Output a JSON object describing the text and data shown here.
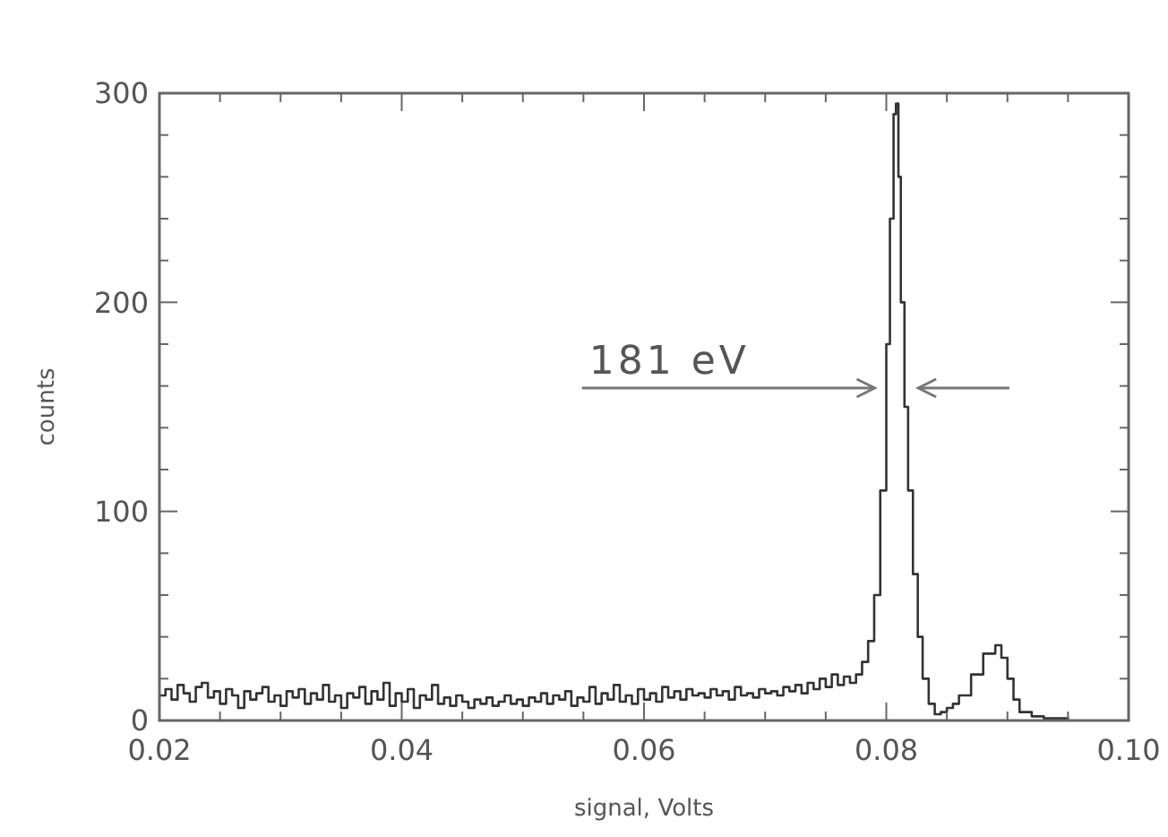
{
  "chart_data": {
    "type": "step",
    "xlabel": "signal, Volts",
    "ylabel": "counts",
    "xlim": [
      0.02,
      0.1
    ],
    "ylim": [
      0,
      300
    ],
    "xticks": [
      {
        "value": 0.02,
        "label": "0.02"
      },
      {
        "value": 0.025,
        "label": null
      },
      {
        "value": 0.03,
        "label": null
      },
      {
        "value": 0.035,
        "label": null
      },
      {
        "value": 0.04,
        "label": "0.04"
      },
      {
        "value": 0.045,
        "label": null
      },
      {
        "value": 0.05,
        "label": null
      },
      {
        "value": 0.055,
        "label": null
      },
      {
        "value": 0.06,
        "label": "0.06"
      },
      {
        "value": 0.065,
        "label": null
      },
      {
        "value": 0.07,
        "label": null
      },
      {
        "value": 0.075,
        "label": null
      },
      {
        "value": 0.08,
        "label": "0.08"
      },
      {
        "value": 0.085,
        "label": null
      },
      {
        "value": 0.09,
        "label": null
      },
      {
        "value": 0.095,
        "label": null
      },
      {
        "value": 0.1,
        "label": "0.10"
      }
    ],
    "yticks": [
      0,
      {
        "value": 20,
        "label": null
      },
      {
        "value": 40,
        "label": null
      },
      {
        "value": 60,
        "label": null
      },
      {
        "value": 80,
        "label": null
      },
      100,
      {
        "value": 120,
        "label": null
      },
      {
        "value": 140,
        "label": null
      },
      {
        "value": 160,
        "label": null
      },
      {
        "value": 180,
        "label": null
      },
      200,
      {
        "value": 220,
        "label": null
      },
      {
        "value": 240,
        "label": null
      },
      {
        "value": 260,
        "label": null
      },
      {
        "value": 280,
        "label": null
      },
      300
    ],
    "grid": false,
    "line_style": "solid",
    "annotations": [
      "181 eV"
    ],
    "series": [
      {
        "color": "#333333",
        "x": [
          0.02,
          0.0205,
          0.021,
          0.0215,
          0.022,
          0.0225,
          0.023,
          0.0235,
          0.024,
          0.0245,
          0.025,
          0.0255,
          0.026,
          0.0265,
          0.027,
          0.0275,
          0.028,
          0.0285,
          0.029,
          0.0295,
          0.03,
          0.0305,
          0.031,
          0.0315,
          0.032,
          0.0325,
          0.033,
          0.0335,
          0.034,
          0.0345,
          0.035,
          0.0355,
          0.036,
          0.0365,
          0.037,
          0.0375,
          0.038,
          0.0385,
          0.039,
          0.0395,
          0.04,
          0.0405,
          0.041,
          0.0415,
          0.042,
          0.0425,
          0.043,
          0.0435,
          0.044,
          0.0445,
          0.045,
          0.0455,
          0.046,
          0.0465,
          0.047,
          0.0475,
          0.048,
          0.0485,
          0.049,
          0.0495,
          0.05,
          0.0505,
          0.051,
          0.0515,
          0.052,
          0.0525,
          0.053,
          0.0535,
          0.054,
          0.0545,
          0.055,
          0.0555,
          0.056,
          0.0565,
          0.057,
          0.0575,
          0.058,
          0.0585,
          0.059,
          0.0595,
          0.06,
          0.0605,
          0.061,
          0.0615,
          0.062,
          0.0625,
          0.063,
          0.0635,
          0.064,
          0.0645,
          0.065,
          0.0655,
          0.066,
          0.0665,
          0.067,
          0.0675,
          0.068,
          0.0685,
          0.069,
          0.0695,
          0.07,
          0.0705,
          0.071,
          0.0715,
          0.072,
          0.0725,
          0.073,
          0.0735,
          0.074,
          0.0745,
          0.075,
          0.0755,
          0.076,
          0.0765,
          0.077,
          0.0775,
          0.078,
          0.0785,
          0.079,
          0.0795,
          0.08,
          0.0803,
          0.0806,
          0.0808,
          0.081,
          0.0812,
          0.0815,
          0.0818,
          0.0822,
          0.0826,
          0.083,
          0.0835,
          0.084,
          0.0845,
          0.085,
          0.0855,
          0.086,
          0.087,
          0.088,
          0.089,
          0.0895,
          0.09,
          0.0905,
          0.091,
          0.092,
          0.093,
          0.094,
          0.095
        ],
        "values": [
          12,
          15,
          10,
          17,
          13,
          9,
          16,
          18,
          11,
          14,
          8,
          15,
          12,
          6,
          14,
          10,
          13,
          16,
          9,
          12,
          7,
          14,
          11,
          15,
          8,
          13,
          10,
          17,
          9,
          12,
          6,
          13,
          11,
          16,
          8,
          14,
          10,
          18,
          7,
          13,
          9,
          15,
          6,
          12,
          10,
          17,
          8,
          11,
          7,
          12,
          9,
          6,
          10,
          8,
          11,
          7,
          9,
          12,
          8,
          10,
          7,
          11,
          9,
          13,
          8,
          12,
          10,
          14,
          7,
          11,
          9,
          16,
          8,
          13,
          10,
          17,
          9,
          12,
          8,
          15,
          10,
          13,
          9,
          16,
          11,
          14,
          10,
          15,
          12,
          13,
          11,
          15,
          12,
          14,
          10,
          16,
          12,
          13,
          11,
          15,
          13,
          14,
          12,
          16,
          14,
          17,
          13,
          18,
          15,
          20,
          16,
          22,
          17,
          21,
          18,
          22,
          28,
          38,
          60,
          110,
          180,
          240,
          290,
          295,
          260,
          200,
          150,
          110,
          70,
          40,
          20,
          8,
          3,
          4,
          6,
          8,
          12,
          22,
          32,
          36,
          30,
          20,
          10,
          4,
          2,
          1,
          1,
          0
        ]
      }
    ]
  }
}
